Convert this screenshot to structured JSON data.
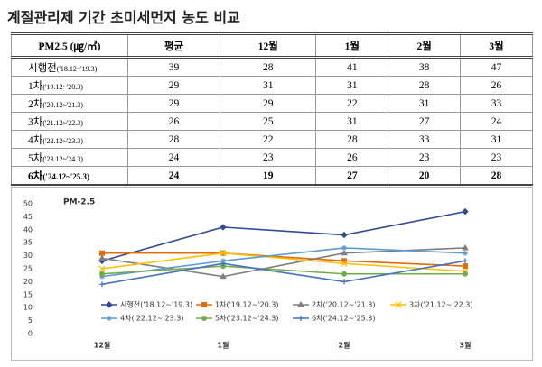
{
  "title": "계절관리제 기간 초미세먼지 농도 비교",
  "table": {
    "header": [
      "PM2.5 (㎍/㎥)",
      "평균",
      "12월",
      "1월",
      "2월",
      "3월"
    ],
    "rows": [
      {
        "label": "시행전",
        "period": "('18.12~'19.3)",
        "values": [
          39,
          28,
          41,
          38,
          47
        ]
      },
      {
        "label": "1차",
        "period": "('19.12~'20.3)",
        "values": [
          29,
          31,
          31,
          28,
          26
        ]
      },
      {
        "label": "2차",
        "period": "('20.12~'21.3)",
        "values": [
          29,
          29,
          22,
          31,
          33
        ]
      },
      {
        "label": "3차",
        "period": "('21.12~'22.3)",
        "values": [
          26,
          25,
          31,
          27,
          24
        ]
      },
      {
        "label": "4차",
        "period": "('22.12~'23.3)",
        "values": [
          28,
          22,
          28,
          33,
          31
        ]
      },
      {
        "label": "5차",
        "period": "('23.12~'24.3)",
        "values": [
          24,
          23,
          26,
          23,
          23
        ]
      },
      {
        "label": "6차",
        "period": "('24.12~'25.3)",
        "values": [
          24,
          19,
          27,
          20,
          28
        ]
      }
    ]
  },
  "chart_data": {
    "type": "line",
    "title": "PM-2.5",
    "categories": [
      "12월",
      "1월",
      "2월",
      "3월"
    ],
    "ylim": [
      0,
      50
    ],
    "yticks": [
      0,
      5,
      10,
      15,
      20,
      25,
      30,
      35,
      40,
      45,
      50
    ],
    "grid": false,
    "series": [
      {
        "name": "시행전('18.12~'19.3)",
        "color": "#2f4b9a",
        "marker": "diamond",
        "values": [
          28,
          41,
          38,
          47
        ]
      },
      {
        "name": "1차('19.12~'20.3)",
        "color": "#e36c0a",
        "marker": "square",
        "values": [
          31,
          31,
          28,
          26
        ]
      },
      {
        "name": "2차('20.12~'21.3)",
        "color": "#7f7f7f",
        "marker": "triangle",
        "values": [
          29,
          22,
          31,
          33
        ]
      },
      {
        "name": "3차('21.12~'22.3)",
        "color": "#ffc000",
        "marker": "x",
        "values": [
          25,
          31,
          27,
          24
        ]
      },
      {
        "name": "4차('22.12~'23.3)",
        "color": "#5b9bd5",
        "marker": "star",
        "values": [
          22,
          28,
          33,
          31
        ]
      },
      {
        "name": "5차('23.12~'24.3)",
        "color": "#70ad47",
        "marker": "circle",
        "values": [
          23,
          26,
          23,
          23
        ]
      },
      {
        "name": "6차('24.12~'25.3)",
        "color": "#4472c4",
        "marker": "plus",
        "values": [
          19,
          27,
          20,
          28
        ]
      }
    ]
  }
}
